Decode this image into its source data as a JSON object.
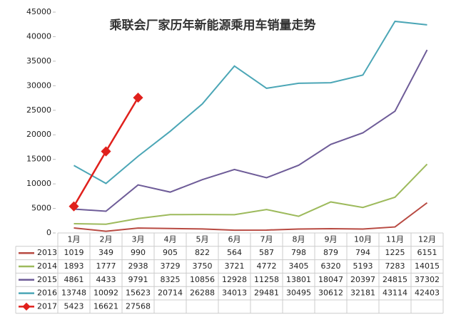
{
  "chart_data": {
    "type": "line",
    "title": "乘联会厂家历年新能源乘用车销量走势",
    "categories": [
      "1月",
      "2月",
      "3月",
      "4月",
      "5月",
      "6月",
      "7月",
      "8月",
      "9月",
      "10月",
      "11月",
      "12月"
    ],
    "ylim": [
      0,
      45000
    ],
    "yticks": [
      0,
      5000,
      10000,
      15000,
      20000,
      25000,
      30000,
      35000,
      40000,
      45000
    ],
    "series": [
      {
        "name": "2013",
        "color": "#b84a42",
        "values": [
          1019,
          349,
          990,
          905,
          822,
          564,
          587,
          798,
          879,
          794,
          1225,
          6151
        ]
      },
      {
        "name": "2014",
        "color": "#9dba5c",
        "values": [
          1893,
          1777,
          2938,
          3729,
          3750,
          3721,
          4772,
          3405,
          6320,
          5193,
          7283,
          14015
        ]
      },
      {
        "name": "2015",
        "color": "#6e5c98",
        "values": [
          4861,
          4433,
          9791,
          8325,
          10856,
          12928,
          11258,
          13801,
          18047,
          20397,
          24815,
          37302
        ]
      },
      {
        "name": "2016",
        "color": "#4ba6b6",
        "values": [
          13748,
          10092,
          15623,
          20714,
          26288,
          34013,
          29481,
          30495,
          30612,
          32181,
          43114,
          42403
        ]
      },
      {
        "name": "2017",
        "color": "#e0201c",
        "marker": "diamond",
        "values": [
          5423,
          16621,
          27568,
          null,
          null,
          null,
          null,
          null,
          null,
          null,
          null,
          null
        ]
      }
    ]
  }
}
